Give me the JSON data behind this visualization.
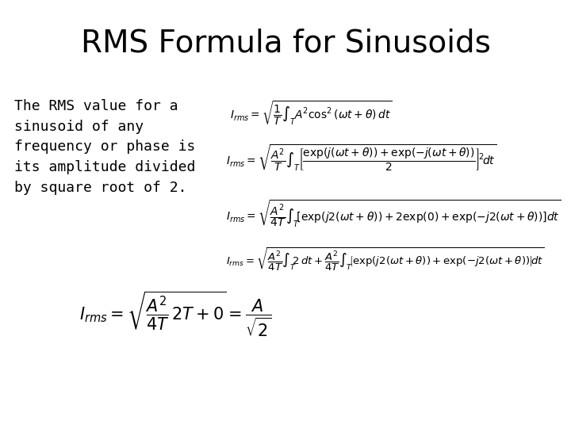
{
  "title": "RMS Formula for Sinusoids",
  "title_fontsize": 28,
  "bg_color": "#ffffff",
  "text_color": "#000000",
  "body_text": "The RMS value for a\nsinusoid of any\nfrequency or phase is\nits amplitude divided\nby square root of 2.",
  "body_fontsize": 13,
  "eq1": "$I_{rms} = \\sqrt{\\dfrac{1}{T}\\int_T A^2 \\cos^2(\\omega t + \\theta)\\,dt}$",
  "eq2": "$I_{rms} = \\sqrt{\\dfrac{A^2}{T}\\int_T\\left[\\dfrac{\\exp(j(\\omega t+\\theta))+\\exp(-j(\\omega t+\\theta))}{2}\\right]^{\\!2}\\!dt}$",
  "eq3": "$I_{rms} = \\sqrt{\\dfrac{A^2}{4T}\\int_T\\!\\left[\\exp(j2(\\omega t+\\theta))+2\\exp(0)+\\exp(-j2(\\omega t+\\theta))\\right]dt}$",
  "eq4": "$I_{rms} = \\sqrt{\\dfrac{A^2}{4T}\\int_T\\!2\\,dt+\\dfrac{A^2}{4T}\\int_T\\!\\left[\\exp(j2(\\omega t+\\theta))+\\exp(-j2(\\omega t+\\theta))\\right]\\!dt}$",
  "eq5": "$I_{rms} = \\sqrt{\\dfrac{A^2}{4T}\\,2T+0} = \\dfrac{A}{\\sqrt{2}}$",
  "eq_fontsize": 10,
  "eq5_fontsize": 15
}
